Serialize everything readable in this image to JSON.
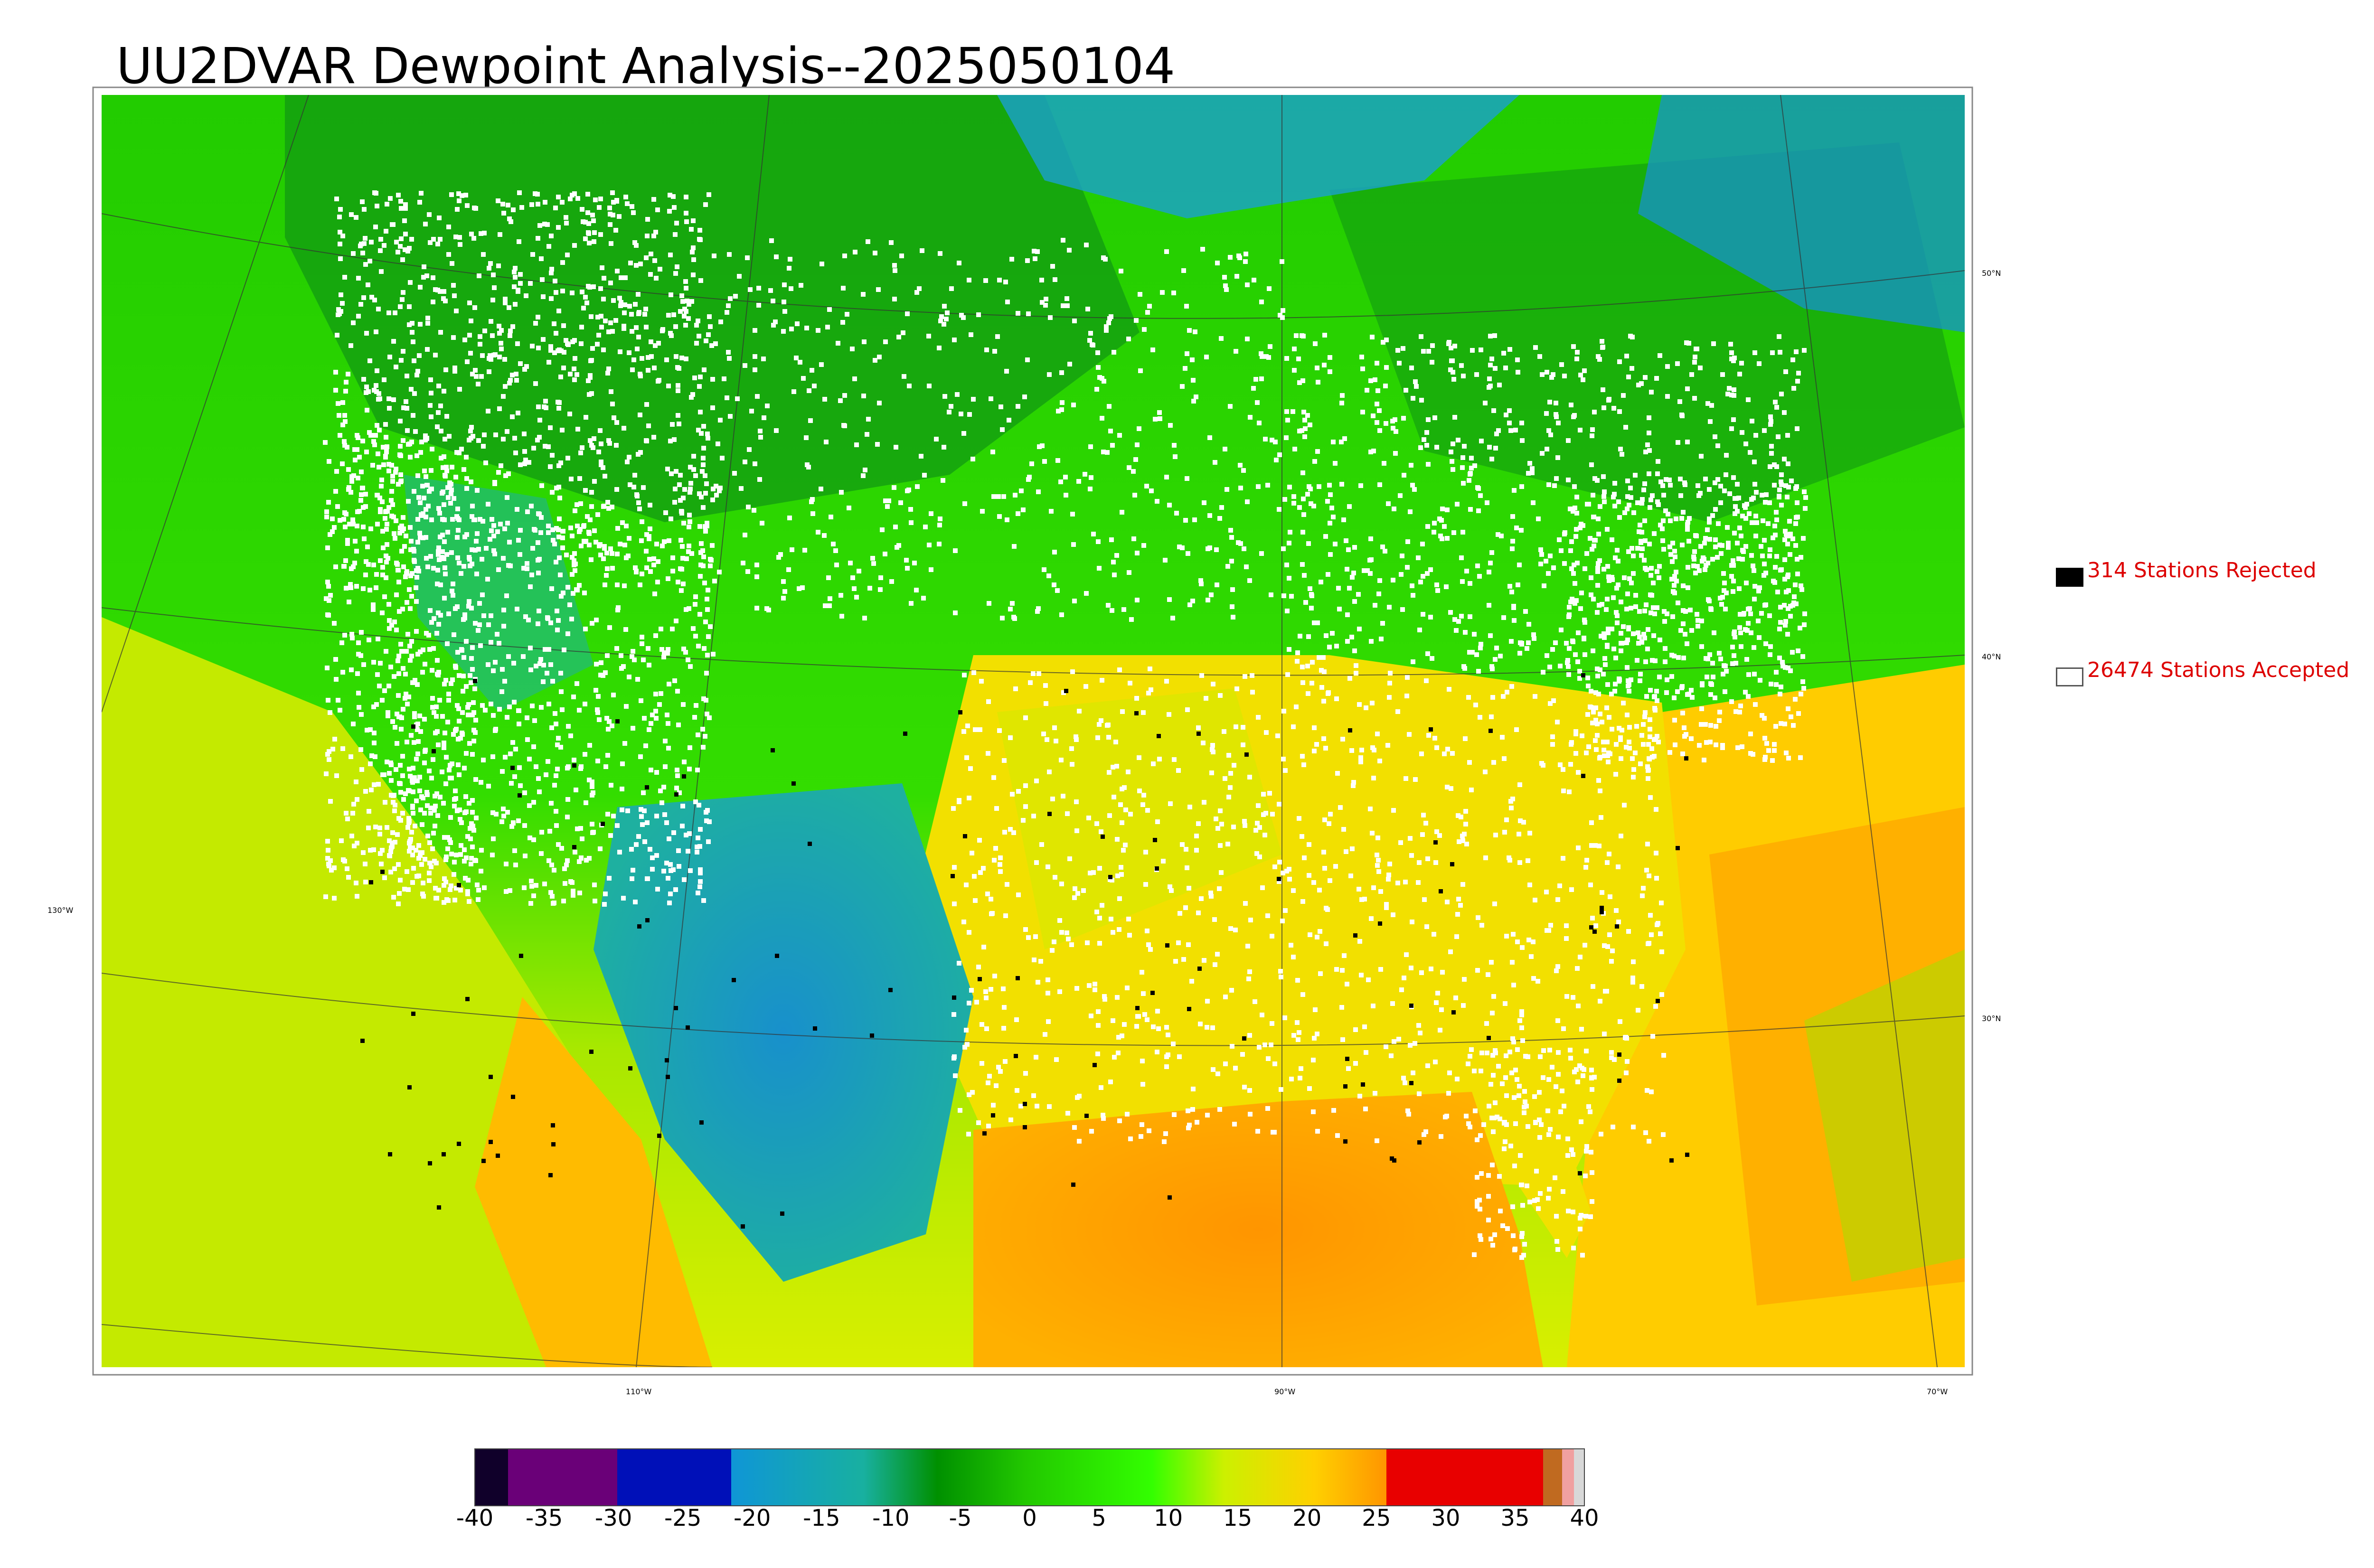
{
  "title": "UU2DVAR Dewpoint Analysis--2025050104",
  "map": {
    "latitude_labels": [
      "50°N",
      "40°N",
      "30°N"
    ],
    "longitude_labels": [
      "130°W",
      "110°W",
      "90°W",
      "70°W"
    ],
    "colors": {
      "ocean_warm": "#ff9900",
      "gulf": "#ff9900",
      "mid_south": "#f2e000",
      "plains_green": "#22cc00",
      "north_green": "#119911",
      "desert_blue": "#1ea8c8",
      "canada_blue": "#1690d0",
      "pacific": "#b8e800",
      "coast_white_stations": "#ffffff"
    }
  },
  "legend": {
    "rejected_label": "314 Stations Rejected",
    "accepted_label": "26474 Stations Accepted",
    "rejected_color": "#000000",
    "accepted_color": "#ffffff",
    "text_color": "#dd0000"
  },
  "colorbar": {
    "ticks": [
      "-40",
      "-35",
      "-30",
      "-25",
      "-20",
      "-15",
      "-10",
      "-5",
      "0",
      "5",
      "10",
      "15",
      "20",
      "25",
      "30",
      "35",
      "40"
    ]
  }
}
